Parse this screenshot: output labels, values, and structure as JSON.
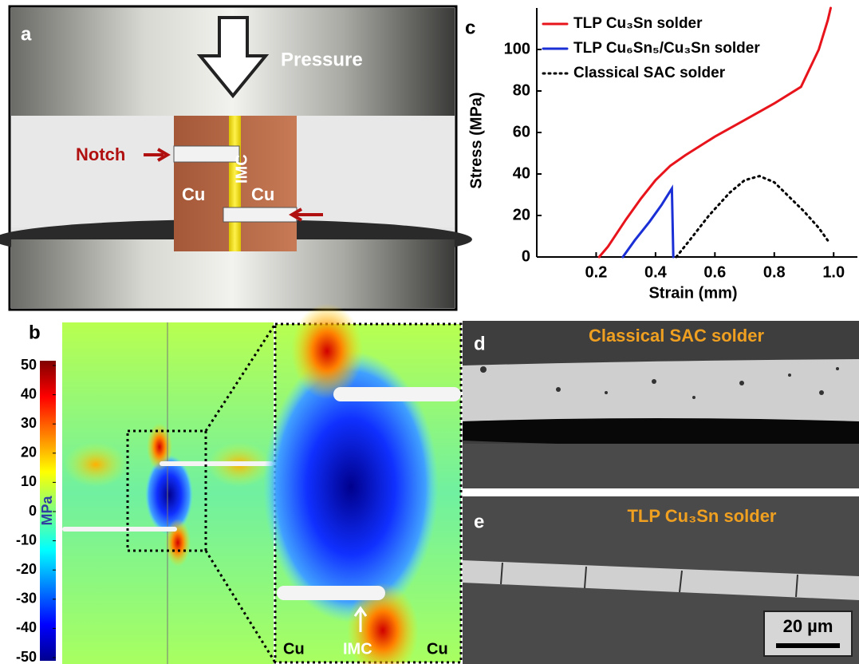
{
  "panels": {
    "a": {
      "label": "a",
      "pressure": "Pressure",
      "notch": "Notch",
      "cu_left": "Cu",
      "imc": "IMC",
      "cu_right": "Cu"
    },
    "b": {
      "label": "b",
      "colorbar": {
        "label": "MPa",
        "lim": [
          -50,
          50
        ],
        "ticks": [
          50,
          40,
          30,
          20,
          10,
          0,
          -10,
          -20,
          -30,
          -40,
          -50
        ]
      },
      "cu_left": "Cu",
      "imc": "IMC",
      "cu_right": "Cu"
    },
    "c": {
      "label": "c"
    },
    "d": {
      "label": "d",
      "caption": "Classical SAC solder"
    },
    "e": {
      "label": "e",
      "caption": "TLP Cu₃Sn solder",
      "scale_bar": "20 µm"
    }
  },
  "chart_data": {
    "type": "line",
    "xlabel": "Strain (mm)",
    "ylabel": "Stress (MPa)",
    "xlim": [
      0,
      1.08
    ],
    "xticks": [
      0.2,
      0.4,
      0.6,
      0.8,
      {
        "value": 1,
        "label": "1.0"
      }
    ],
    "ylim": [
      0,
      120
    ],
    "yticks": [
      0,
      20,
      40,
      60,
      80,
      100
    ],
    "legend": "top-left",
    "series": [
      {
        "name": "TLP Cu₃Sn solder",
        "color": "#e8141c",
        "dash": "solid",
        "x": [
          0.21,
          0.24,
          0.3,
          0.35,
          0.4,
          0.45,
          0.5,
          0.6,
          0.7,
          0.8,
          0.89,
          0.95,
          0.98,
          0.99
        ],
        "values": [
          0,
          5,
          18,
          28,
          37,
          44,
          49,
          58,
          66,
          74,
          82,
          100,
          114,
          120
        ]
      },
      {
        "name": "TLP Cu₆Sn₅/Cu₃Sn solder",
        "color": "#1a2fd6",
        "dash": "solid",
        "x": [
          0.29,
          0.33,
          0.38,
          0.42,
          0.455,
          0.46
        ],
        "values": [
          0,
          8,
          17,
          25,
          33,
          0
        ]
      },
      {
        "name": "Classical SAC solder",
        "color": "#000000",
        "dash": "dotted",
        "x": [
          0.47,
          0.52,
          0.58,
          0.65,
          0.7,
          0.75,
          0.8,
          0.85,
          0.9,
          0.95,
          0.98
        ],
        "values": [
          0,
          9,
          20,
          31,
          37,
          39,
          36,
          29,
          22,
          14,
          8
        ]
      }
    ]
  }
}
